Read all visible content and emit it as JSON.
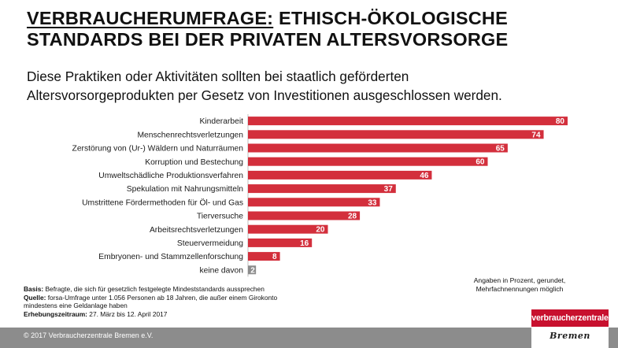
{
  "header": {
    "title_part1": "VERBRAUCHERUMFRAGE:",
    "title_part2": " ETHISCH-ÖKOLOGISCHE",
    "title_line2": "STANDARDS BEI DER PRIVATEN ALTERSVORSORGE",
    "subtitle_line1": "Diese Praktiken oder Aktivitäten sollten bei staatlich geförderten",
    "subtitle_line2": "Altersvorsorgeprodukten per Gesetz von Investitionen ausgeschlossen werden."
  },
  "chart_data": {
    "type": "bar",
    "orientation": "horizontal",
    "categories": [
      "Kinderarbeit",
      "Menschenrechtsverletzungen",
      "Zerstörung von (Ur-) Wäldern und Naturräumen",
      "Korruption und Bestechung",
      "Umweltschädliche Produktionsverfahren",
      "Spekulation mit Nahrungsmitteln",
      "Umstrittene Fördermethoden für Öl- und Gas",
      "Tierversuche",
      "Arbeitsrechtsverletzungen",
      "Steuervermeidung",
      "Embryonen- und Stammzellenforschung",
      "keine davon"
    ],
    "values": [
      80,
      74,
      65,
      60,
      46,
      37,
      33,
      28,
      20,
      16,
      8,
      2
    ],
    "unit": "Prozent",
    "xlim": [
      0,
      80
    ],
    "bar_color": "#d32f3c",
    "last_bar_color": "#8c8c8c",
    "grid": false,
    "legend": "none"
  },
  "notes": {
    "basis_label": "Basis:",
    "basis_text": " Befragte, die sich für gesetzlich festgelegte Mindeststandards aussprechen",
    "quelle_label": "Quelle:",
    "quelle_text": " forsa-Umfrage unter 1.056 Personen ab 18 Jahren, die außer einem Girokonto",
    "quelle_text2": "mindestens eine Geldanlage haben",
    "zeitraum_label": "Erhebungszeitraum:",
    "zeitraum_text": "  27. März bis 12. April 2017",
    "units_line1": "Angaben in Prozent, gerundet,",
    "units_line2": "Mehrfachnennungen möglich"
  },
  "footer": {
    "copyright": "© 2017 Verbraucherzentrale Bremen e.V."
  },
  "logo": {
    "top_text": "verbraucherzentrale",
    "bottom_text": "Bremen",
    "brand_color": "#c8102e"
  }
}
